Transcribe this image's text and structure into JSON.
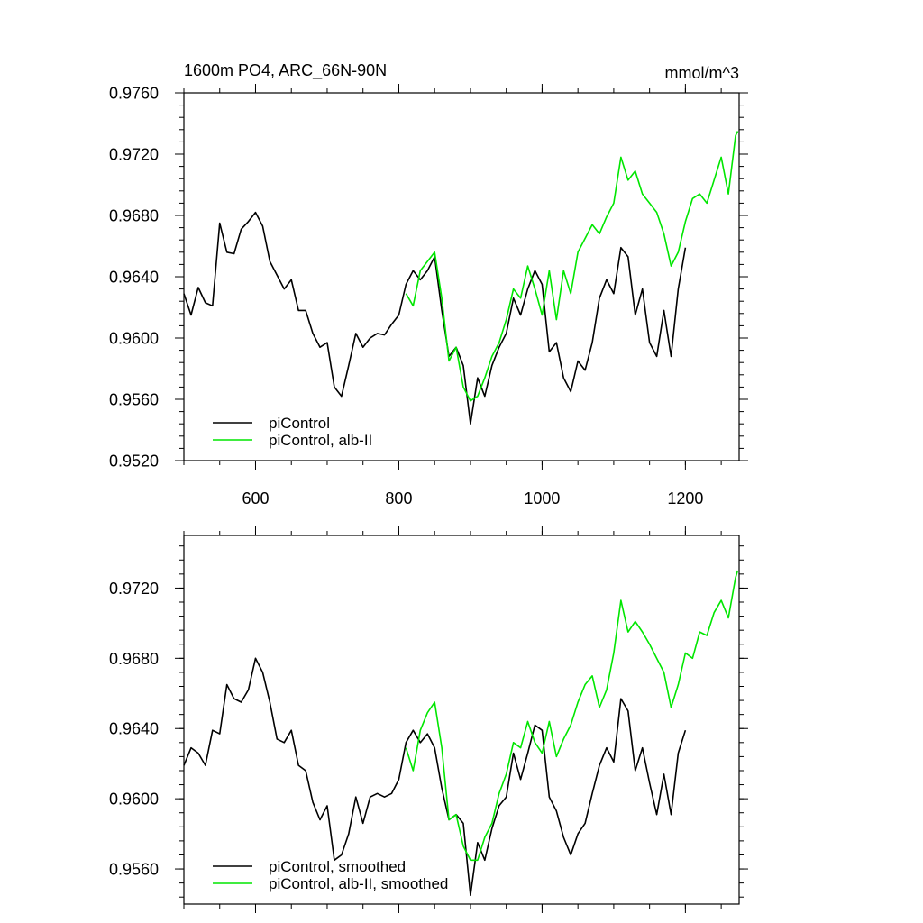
{
  "chart_data": [
    {
      "type": "line",
      "title": "1600m PO4, ARC_66N-90N",
      "right_title": "mmol/m^3",
      "xlim": [
        500,
        1275
      ],
      "xticks": [
        600,
        800,
        1000,
        1200
      ],
      "xticklabels": true,
      "ylim": [
        0.952,
        0.976
      ],
      "yticks": [
        {
          "value": 0.952,
          "label": "0.9520"
        },
        {
          "value": 0.956,
          "label": "0.9560"
        },
        {
          "value": 0.96,
          "label": "0.9600"
        },
        {
          "value": 0.964,
          "label": "0.9640"
        },
        {
          "value": 0.968,
          "label": "0.9680"
        },
        {
          "value": 0.972,
          "label": "0.9720"
        },
        {
          "value": 0.976,
          "label": "0.9760"
        }
      ],
      "legend": "lower left",
      "series": [
        {
          "name": "piControl",
          "color": "#000000",
          "x": [
            500,
            510,
            520,
            530,
            540,
            550,
            560,
            570,
            580,
            590,
            600,
            610,
            620,
            630,
            640,
            650,
            660,
            670,
            680,
            690,
            700,
            710,
            720,
            730,
            740,
            750,
            760,
            770,
            780,
            790,
            800,
            810,
            820,
            830,
            840,
            850,
            860,
            870,
            880,
            890,
            900,
            910,
            920,
            930,
            940,
            950,
            960,
            970,
            980,
            990,
            1000,
            1010,
            1020,
            1030,
            1040,
            1050,
            1060,
            1070,
            1080,
            1090,
            1100,
            1110,
            1120,
            1130,
            1140,
            1150,
            1160,
            1170,
            1180,
            1190,
            1200
          ],
          "values": [
            0.9629,
            0.9615,
            0.9633,
            0.9623,
            0.9621,
            0.9675,
            0.9656,
            0.9655,
            0.9671,
            0.9676,
            0.9682,
            0.9673,
            0.965,
            0.9641,
            0.9632,
            0.9638,
            0.9618,
            0.9618,
            0.9603,
            0.9594,
            0.9597,
            0.9568,
            0.9562,
            0.9582,
            0.9603,
            0.9594,
            0.96,
            0.9603,
            0.9602,
            0.9609,
            0.9615,
            0.9635,
            0.9644,
            0.9638,
            0.9644,
            0.9653,
            0.9618,
            0.9588,
            0.9594,
            0.9582,
            0.9544,
            0.9574,
            0.9562,
            0.9582,
            0.9594,
            0.9603,
            0.9626,
            0.9615,
            0.9632,
            0.9644,
            0.9635,
            0.9591,
            0.9597,
            0.9574,
            0.9565,
            0.9585,
            0.9579,
            0.9597,
            0.9626,
            0.9638,
            0.9629,
            0.9659,
            0.9653,
            0.9615,
            0.9632,
            0.9597,
            0.9588,
            0.9618,
            0.9588,
            0.9632,
            0.9659
          ]
        },
        {
          "name": "piControl, alb-II",
          "color": "#00e600",
          "x": [
            810,
            820,
            830,
            840,
            850,
            860,
            870,
            880,
            890,
            900,
            910,
            920,
            930,
            940,
            950,
            960,
            970,
            980,
            990,
            1000,
            1010,
            1020,
            1030,
            1040,
            1050,
            1060,
            1070,
            1080,
            1090,
            1100,
            1110,
            1120,
            1130,
            1140,
            1150,
            1160,
            1170,
            1180,
            1190,
            1200,
            1210,
            1220,
            1230,
            1240,
            1250,
            1260,
            1270,
            1273
          ],
          "values": [
            0.9629,
            0.9621,
            0.9644,
            0.965,
            0.9656,
            0.9626,
            0.9585,
            0.9594,
            0.9568,
            0.9559,
            0.9562,
            0.9574,
            0.9588,
            0.9597,
            0.9612,
            0.9632,
            0.9626,
            0.9647,
            0.9632,
            0.9615,
            0.9644,
            0.9612,
            0.9644,
            0.9629,
            0.9656,
            0.9665,
            0.9674,
            0.9668,
            0.9679,
            0.9688,
            0.9718,
            0.9703,
            0.9709,
            0.9694,
            0.9688,
            0.9682,
            0.9668,
            0.9647,
            0.9656,
            0.9676,
            0.9691,
            0.9694,
            0.9688,
            0.9703,
            0.9718,
            0.9694,
            0.9732,
            0.9735
          ]
        }
      ]
    },
    {
      "type": "line",
      "xlim": [
        500,
        1275
      ],
      "xticks": [
        600,
        800,
        1000,
        1200
      ],
      "xticklabels": false,
      "ylim": [
        0.954,
        0.975
      ],
      "yticks": [
        {
          "value": 0.956,
          "label": "0.9560"
        },
        {
          "value": 0.96,
          "label": "0.9600"
        },
        {
          "value": 0.964,
          "label": "0.9640"
        },
        {
          "value": 0.968,
          "label": "0.9680"
        },
        {
          "value": 0.972,
          "label": "0.9720"
        }
      ],
      "legend": "lower left",
      "series": [
        {
          "name": "piControl, smoothed",
          "color": "#000000",
          "x": [
            500,
            510,
            520,
            530,
            540,
            550,
            560,
            570,
            580,
            590,
            600,
            610,
            620,
            630,
            640,
            650,
            660,
            670,
            680,
            690,
            700,
            710,
            720,
            730,
            740,
            750,
            760,
            770,
            780,
            790,
            800,
            810,
            820,
            830,
            840,
            850,
            860,
            870,
            880,
            890,
            900,
            910,
            920,
            930,
            940,
            950,
            960,
            970,
            980,
            990,
            1000,
            1010,
            1020,
            1030,
            1040,
            1050,
            1060,
            1070,
            1080,
            1090,
            1100,
            1110,
            1120,
            1130,
            1140,
            1150,
            1160,
            1170,
            1180,
            1190,
            1200
          ],
          "values": [
            0.9619,
            0.9629,
            0.9626,
            0.9619,
            0.9639,
            0.9637,
            0.9665,
            0.9657,
            0.9655,
            0.9662,
            0.968,
            0.9672,
            0.9655,
            0.9634,
            0.9632,
            0.9639,
            0.9619,
            0.9616,
            0.9598,
            0.9588,
            0.9596,
            0.9565,
            0.9568,
            0.958,
            0.9601,
            0.9586,
            0.9601,
            0.9603,
            0.9601,
            0.9603,
            0.9611,
            0.9632,
            0.9639,
            0.9632,
            0.9637,
            0.9629,
            0.9606,
            0.9588,
            0.9591,
            0.9586,
            0.9545,
            0.9575,
            0.9565,
            0.9583,
            0.9596,
            0.9601,
            0.9626,
            0.9611,
            0.9626,
            0.9642,
            0.9639,
            0.9601,
            0.9593,
            0.9578,
            0.9568,
            0.958,
            0.9586,
            0.9603,
            0.9619,
            0.9629,
            0.9621,
            0.9657,
            0.965,
            0.9616,
            0.9629,
            0.9609,
            0.9591,
            0.9614,
            0.9591,
            0.9626,
            0.9639
          ]
        },
        {
          "name": "piControl, alb-II, smoothed",
          "color": "#00e600",
          "x": [
            810,
            820,
            830,
            840,
            850,
            860,
            870,
            880,
            890,
            900,
            910,
            920,
            930,
            940,
            950,
            960,
            970,
            980,
            990,
            1000,
            1010,
            1020,
            1030,
            1040,
            1050,
            1060,
            1070,
            1080,
            1090,
            1100,
            1110,
            1120,
            1130,
            1140,
            1150,
            1160,
            1170,
            1180,
            1190,
            1200,
            1210,
            1220,
            1230,
            1240,
            1250,
            1260,
            1270,
            1273
          ],
          "values": [
            0.9629,
            0.9616,
            0.9639,
            0.9649,
            0.9655,
            0.9629,
            0.9588,
            0.9591,
            0.9573,
            0.9565,
            0.9565,
            0.9578,
            0.9586,
            0.9603,
            0.9614,
            0.9632,
            0.9629,
            0.9644,
            0.9632,
            0.9626,
            0.9644,
            0.9624,
            0.9634,
            0.9642,
            0.9655,
            0.9665,
            0.967,
            0.9652,
            0.9662,
            0.9683,
            0.9713,
            0.9695,
            0.9701,
            0.9695,
            0.9688,
            0.968,
            0.9672,
            0.9652,
            0.9665,
            0.9683,
            0.968,
            0.9695,
            0.9693,
            0.9706,
            0.9713,
            0.9703,
            0.9726,
            0.973
          ]
        }
      ]
    }
  ]
}
